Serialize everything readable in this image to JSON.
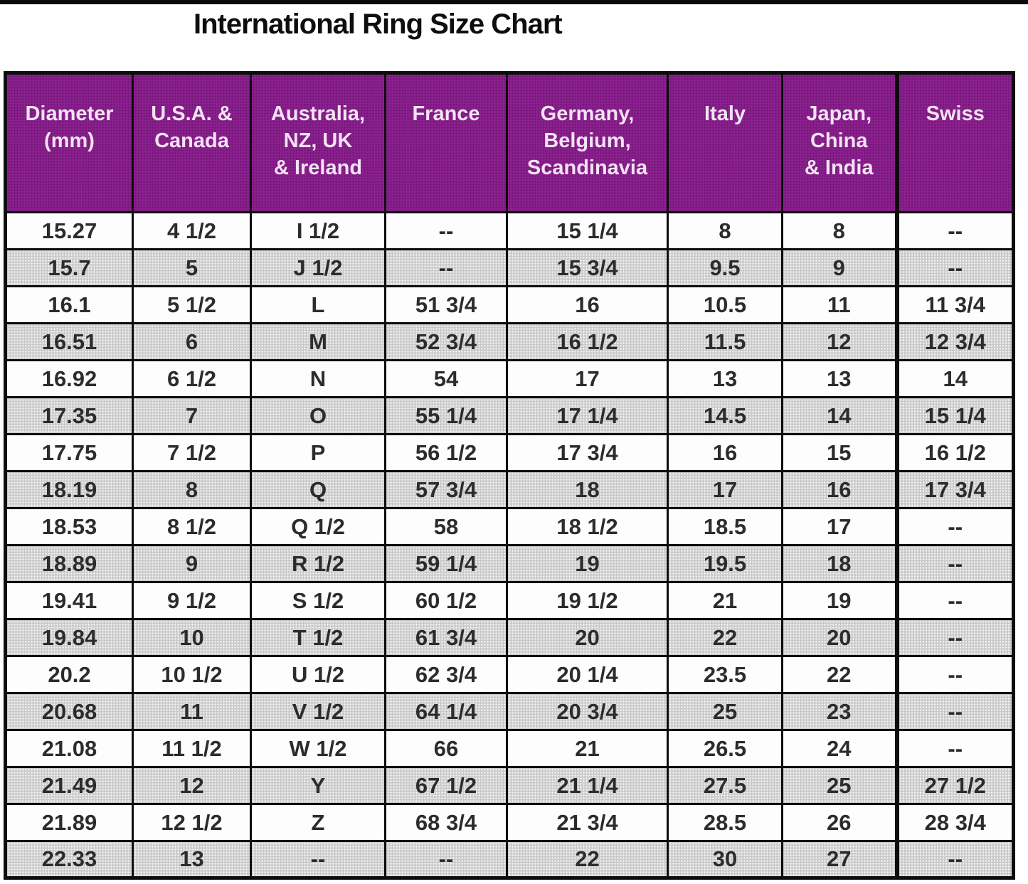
{
  "title": "International Ring Size Chart",
  "colors": {
    "header_bg": "#8d2090",
    "header_text": "#f3e3f3",
    "row_bg": "#ffffff",
    "row_alt_bg": "#c9c9c9",
    "border": "#0d0d0d",
    "cell_text": "#2c2c2c",
    "title_text": "#0e0e0e"
  },
  "chart_data": {
    "type": "table",
    "title": "International Ring Size Chart",
    "columns": [
      "Diameter (mm)",
      "U.S.A. & Canada",
      "Australia, NZ, UK & Ireland",
      "France",
      "Germany, Belgium, Scandinavia",
      "Italy",
      "Japan, China & India",
      "Swiss"
    ],
    "header_lines": [
      "Diameter\n(mm)",
      "U.S.A. &\nCanada",
      "Australia,\nNZ, UK\n& Ireland",
      "France",
      "Germany,\nBelgium,\nScandinavia",
      "Italy",
      "Japan,\nChina\n& India",
      "Swiss"
    ],
    "rows": [
      [
        "15.27",
        "4 1/2",
        "I 1/2",
        "--",
        "15 1/4",
        "8",
        "8",
        "--"
      ],
      [
        "15.7",
        "5",
        "J 1/2",
        "--",
        "15 3/4",
        "9.5",
        "9",
        "--"
      ],
      [
        "16.1",
        "5 1/2",
        "L",
        "51 3/4",
        "16",
        "10.5",
        "11",
        "11 3/4"
      ],
      [
        "16.51",
        "6",
        "M",
        "52 3/4",
        "16 1/2",
        "11.5",
        "12",
        "12 3/4"
      ],
      [
        "16.92",
        "6 1/2",
        "N",
        "54",
        "17",
        "13",
        "13",
        "14"
      ],
      [
        "17.35",
        "7",
        "O",
        "55 1/4",
        "17 1/4",
        "14.5",
        "14",
        "15 1/4"
      ],
      [
        "17.75",
        "7 1/2",
        "P",
        "56 1/2",
        "17 3/4",
        "16",
        "15",
        "16 1/2"
      ],
      [
        "18.19",
        "8",
        "Q",
        "57 3/4",
        "18",
        "17",
        "16",
        "17 3/4"
      ],
      [
        "18.53",
        "8 1/2",
        "Q 1/2",
        "58",
        "18 1/2",
        "18.5",
        "17",
        "--"
      ],
      [
        "18.89",
        "9",
        "R 1/2",
        "59 1/4",
        "19",
        "19.5",
        "18",
        "--"
      ],
      [
        "19.41",
        "9 1/2",
        "S 1/2",
        "60 1/2",
        "19 1/2",
        "21",
        "19",
        "--"
      ],
      [
        "19.84",
        "10",
        "T 1/2",
        "61 3/4",
        "20",
        "22",
        "20",
        "--"
      ],
      [
        "20.2",
        "10 1/2",
        "U 1/2",
        "62 3/4",
        "20 1/4",
        "23.5",
        "22",
        "--"
      ],
      [
        "20.68",
        "11",
        "V 1/2",
        "64 1/4",
        "20 3/4",
        "25",
        "23",
        "--"
      ],
      [
        "21.08",
        "11 1/2",
        "W 1/2",
        "66",
        "21",
        "26.5",
        "24",
        "--"
      ],
      [
        "21.49",
        "12",
        "Y",
        "67 1/2",
        "21 1/4",
        "27.5",
        "25",
        "27 1/2"
      ],
      [
        "21.89",
        "12 1/2",
        "Z",
        "68 3/4",
        "21 3/4",
        "28.5",
        "26",
        "28 3/4"
      ],
      [
        "22.33",
        "13",
        "--",
        "--",
        "22",
        "30",
        "27",
        "--"
      ]
    ]
  }
}
